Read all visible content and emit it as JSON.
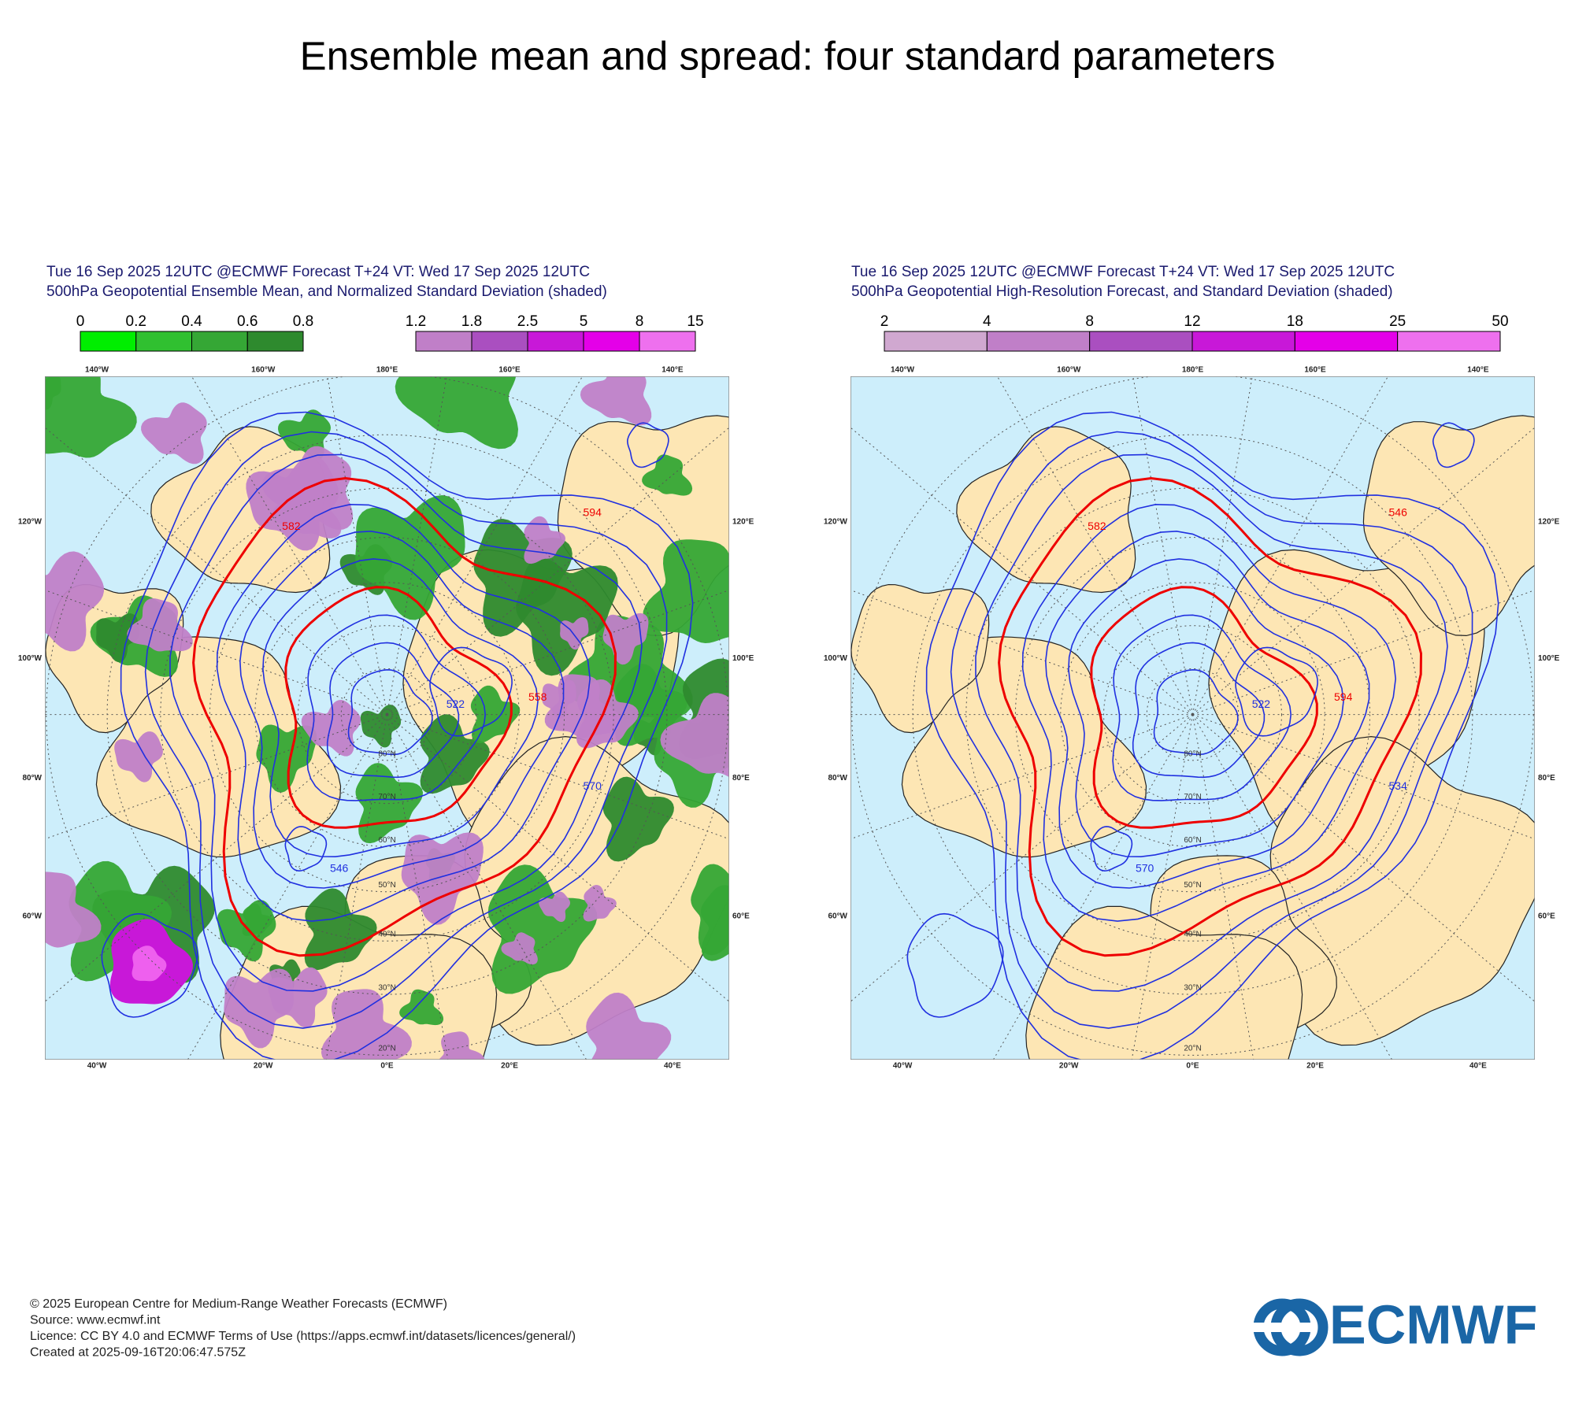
{
  "title": "Ensemble mean and spread: four standard parameters",
  "panels": [
    {
      "header": [
        "Tue 16 Sep 2025 12UTC @ECMWF Forecast T+24 VT: Wed 17 Sep 2025 12UTC",
        "500hPa Geopotential Ensemble Mean, and Normalized Standard Deviation (shaded)"
      ],
      "colorbars": [
        {
          "labels": [
            "0",
            "0.2",
            "0.4",
            "0.6",
            "0.8"
          ],
          "colors": [
            "#00ee00",
            "#30c030",
            "#35a735",
            "#2e8a2e"
          ]
        },
        {
          "labels": [
            "1.2",
            "1.8",
            "2.5",
            "5",
            "8",
            "15"
          ],
          "colors": [
            "#c07fc8",
            "#aa4fc0",
            "#c818d8",
            "#e400e8",
            "#ee70ee"
          ]
        }
      ],
      "lon_labels": {
        "top": [
          "140°W",
          "160°W",
          "180°E",
          "160°E",
          "140°E"
        ],
        "left": [
          "120°W",
          "100°W",
          "80°W",
          "60°W"
        ],
        "right": [
          "120°E",
          "100°E",
          "80°E",
          "60°E"
        ],
        "bottom": [
          "40°W",
          "20°W",
          "0°E",
          "20°E",
          "40°E"
        ]
      },
      "lat_labels": [
        "20°N",
        "30°N",
        "40°N",
        "50°N",
        "60°N",
        "70°N",
        "80°N"
      ],
      "contour_labels": [
        "582",
        "546",
        "558",
        "570",
        "594",
        "522"
      ]
    },
    {
      "header": [
        "Tue 16 Sep 2025 12UTC @ECMWF Forecast T+24 VT: Wed 17 Sep 2025 12UTC",
        "500hPa Geopotential High-Resolution Forecast, and Standard Deviation (shaded)"
      ],
      "colorbars": [
        {
          "labels": [
            "2",
            "4",
            "8",
            "12",
            "18",
            "25",
            "50"
          ],
          "colors": [
            "#d0a8d0",
            "#c07fc8",
            "#aa4fc0",
            "#c818d8",
            "#e400e8",
            "#ee70ee"
          ]
        }
      ],
      "lon_labels": {
        "top": [
          "140°W",
          "160°W",
          "180°E",
          "160°E",
          "140°E"
        ],
        "left": [
          "120°W",
          "100°W",
          "80°W",
          "60°W"
        ],
        "right": [
          "120°E",
          "100°E",
          "80°E",
          "60°E"
        ],
        "bottom": [
          "40°W",
          "20°W",
          "0°E",
          "20°E",
          "40°E"
        ]
      },
      "lat_labels": [
        "20°N",
        "30°N",
        "40°N",
        "50°N",
        "60°N",
        "70°N",
        "80°N"
      ],
      "contour_labels": [
        "582",
        "570",
        "594",
        "534",
        "546",
        "522"
      ]
    }
  ],
  "footer": [
    "© 2025 European Centre for Medium-Range Weather Forecasts (ECMWF)",
    "Source: www.ecmwf.int",
    "Licence: CC BY 4.0 and ECMWF Terms of Use (https://apps.ecmwf.int/datasets/licences/general/)",
    "Created at 2025-09-16T20:06:47.575Z"
  ],
  "logo": "ECMWF"
}
